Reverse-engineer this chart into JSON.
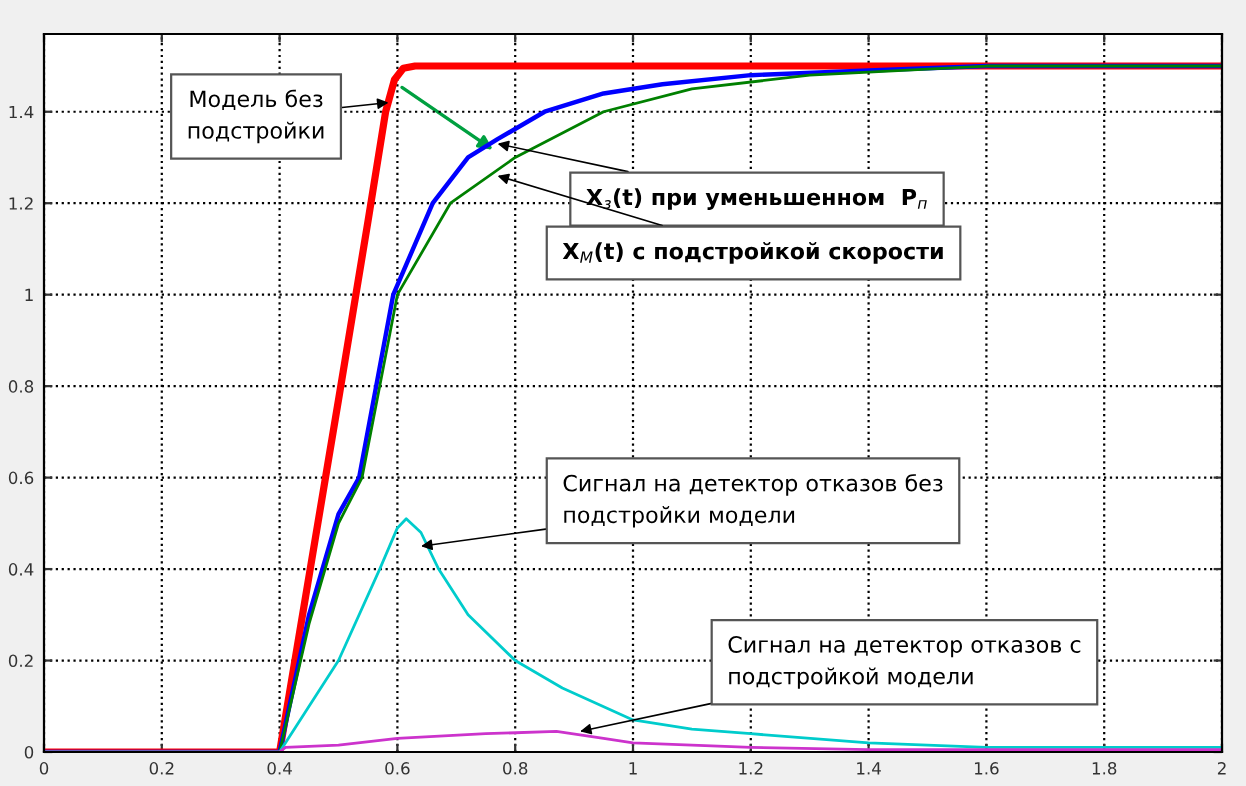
{
  "chart_data": {
    "type": "line",
    "xlim": [
      0,
      2
    ],
    "ylim": [
      0,
      1.57
    ],
    "xticks": [
      0,
      0.2,
      0.4,
      0.6,
      0.8,
      1,
      1.2,
      1.4,
      1.6,
      1.8,
      2
    ],
    "yticks": [
      0,
      0.2,
      0.4,
      0.6,
      0.8,
      1,
      1.2,
      1.4
    ],
    "grid": true,
    "legend": false,
    "line_style": "solid",
    "marker": "none",
    "series": [
      {
        "color": "#ff0000",
        "x": [
          0,
          0.4,
          0.5,
          0.55,
          0.58,
          0.595,
          0.61,
          0.63,
          0.7,
          1,
          1.5,
          2
        ],
        "values": [
          0,
          0,
          0.77,
          1.16,
          1.4,
          1.47,
          1.495,
          1.5,
          1.5,
          1.5,
          1.5,
          1.5
        ]
      },
      {
        "color": "#0000ff",
        "x": [
          0,
          0.4,
          0.45,
          0.5,
          0.535,
          0.593,
          0.66,
          0.72,
          0.77,
          0.85,
          0.95,
          1.05,
          1.2,
          1.4,
          1.6,
          2
        ],
        "values": [
          0,
          0,
          0.3,
          0.52,
          0.6,
          1.0,
          1.2,
          1.3,
          1.34,
          1.4,
          1.44,
          1.46,
          1.48,
          1.49,
          1.5,
          1.5
        ]
      },
      {
        "color": "#008000",
        "x": [
          0,
          0.4,
          0.45,
          0.5,
          0.54,
          0.6,
          0.69,
          0.8,
          0.95,
          1.1,
          1.3,
          1.6,
          2
        ],
        "values": [
          0,
          0,
          0.28,
          0.5,
          0.6,
          1.0,
          1.2,
          1.3,
          1.4,
          1.45,
          1.48,
          1.5,
          1.5
        ]
      },
      {
        "color": "#00cccc",
        "x": [
          0,
          0.4,
          0.45,
          0.5,
          0.57,
          0.6,
          0.615,
          0.64,
          0.67,
          0.72,
          0.8,
          0.88,
          1,
          1.1,
          1.2,
          1.4,
          1.6,
          2
        ],
        "values": [
          0,
          0,
          0.1,
          0.2,
          0.4,
          0.49,
          0.51,
          0.48,
          0.4,
          0.3,
          0.2,
          0.14,
          0.07,
          0.05,
          0.04,
          0.02,
          0.01,
          0.01
        ]
      },
      {
        "color": "#cc33cc",
        "x": [
          0,
          0.4,
          0.41,
          0.5,
          0.6,
          0.75,
          0.87,
          0.95,
          1,
          1.2,
          1.4,
          2
        ],
        "values": [
          0,
          0,
          0.01,
          0.015,
          0.03,
          0.04,
          0.045,
          0.03,
          0.02,
          0.01,
          0.005,
          0.005
        ]
      }
    ],
    "annotations": [
      {
        "text": "Модель без\nподстройки",
        "x": 0.585,
        "y": 1.42
      },
      {
        "text": "X$_{з}$(t) при уменьшенном  P$_{п}$",
        "x": 0.77,
        "y": 1.33
      },
      {
        "text": "X$_{M}$(t) с подстройкой скорости",
        "x": 0.77,
        "y": 1.26
      },
      {
        "text": "Сигнал на детектор отказов без\nподстройки модели",
        "x": 0.64,
        "y": 0.45
      },
      {
        "text": "Сигнал на детектор отказов с\nподстройкой модели",
        "x": 0.91,
        "y": 0.045
      }
    ]
  }
}
